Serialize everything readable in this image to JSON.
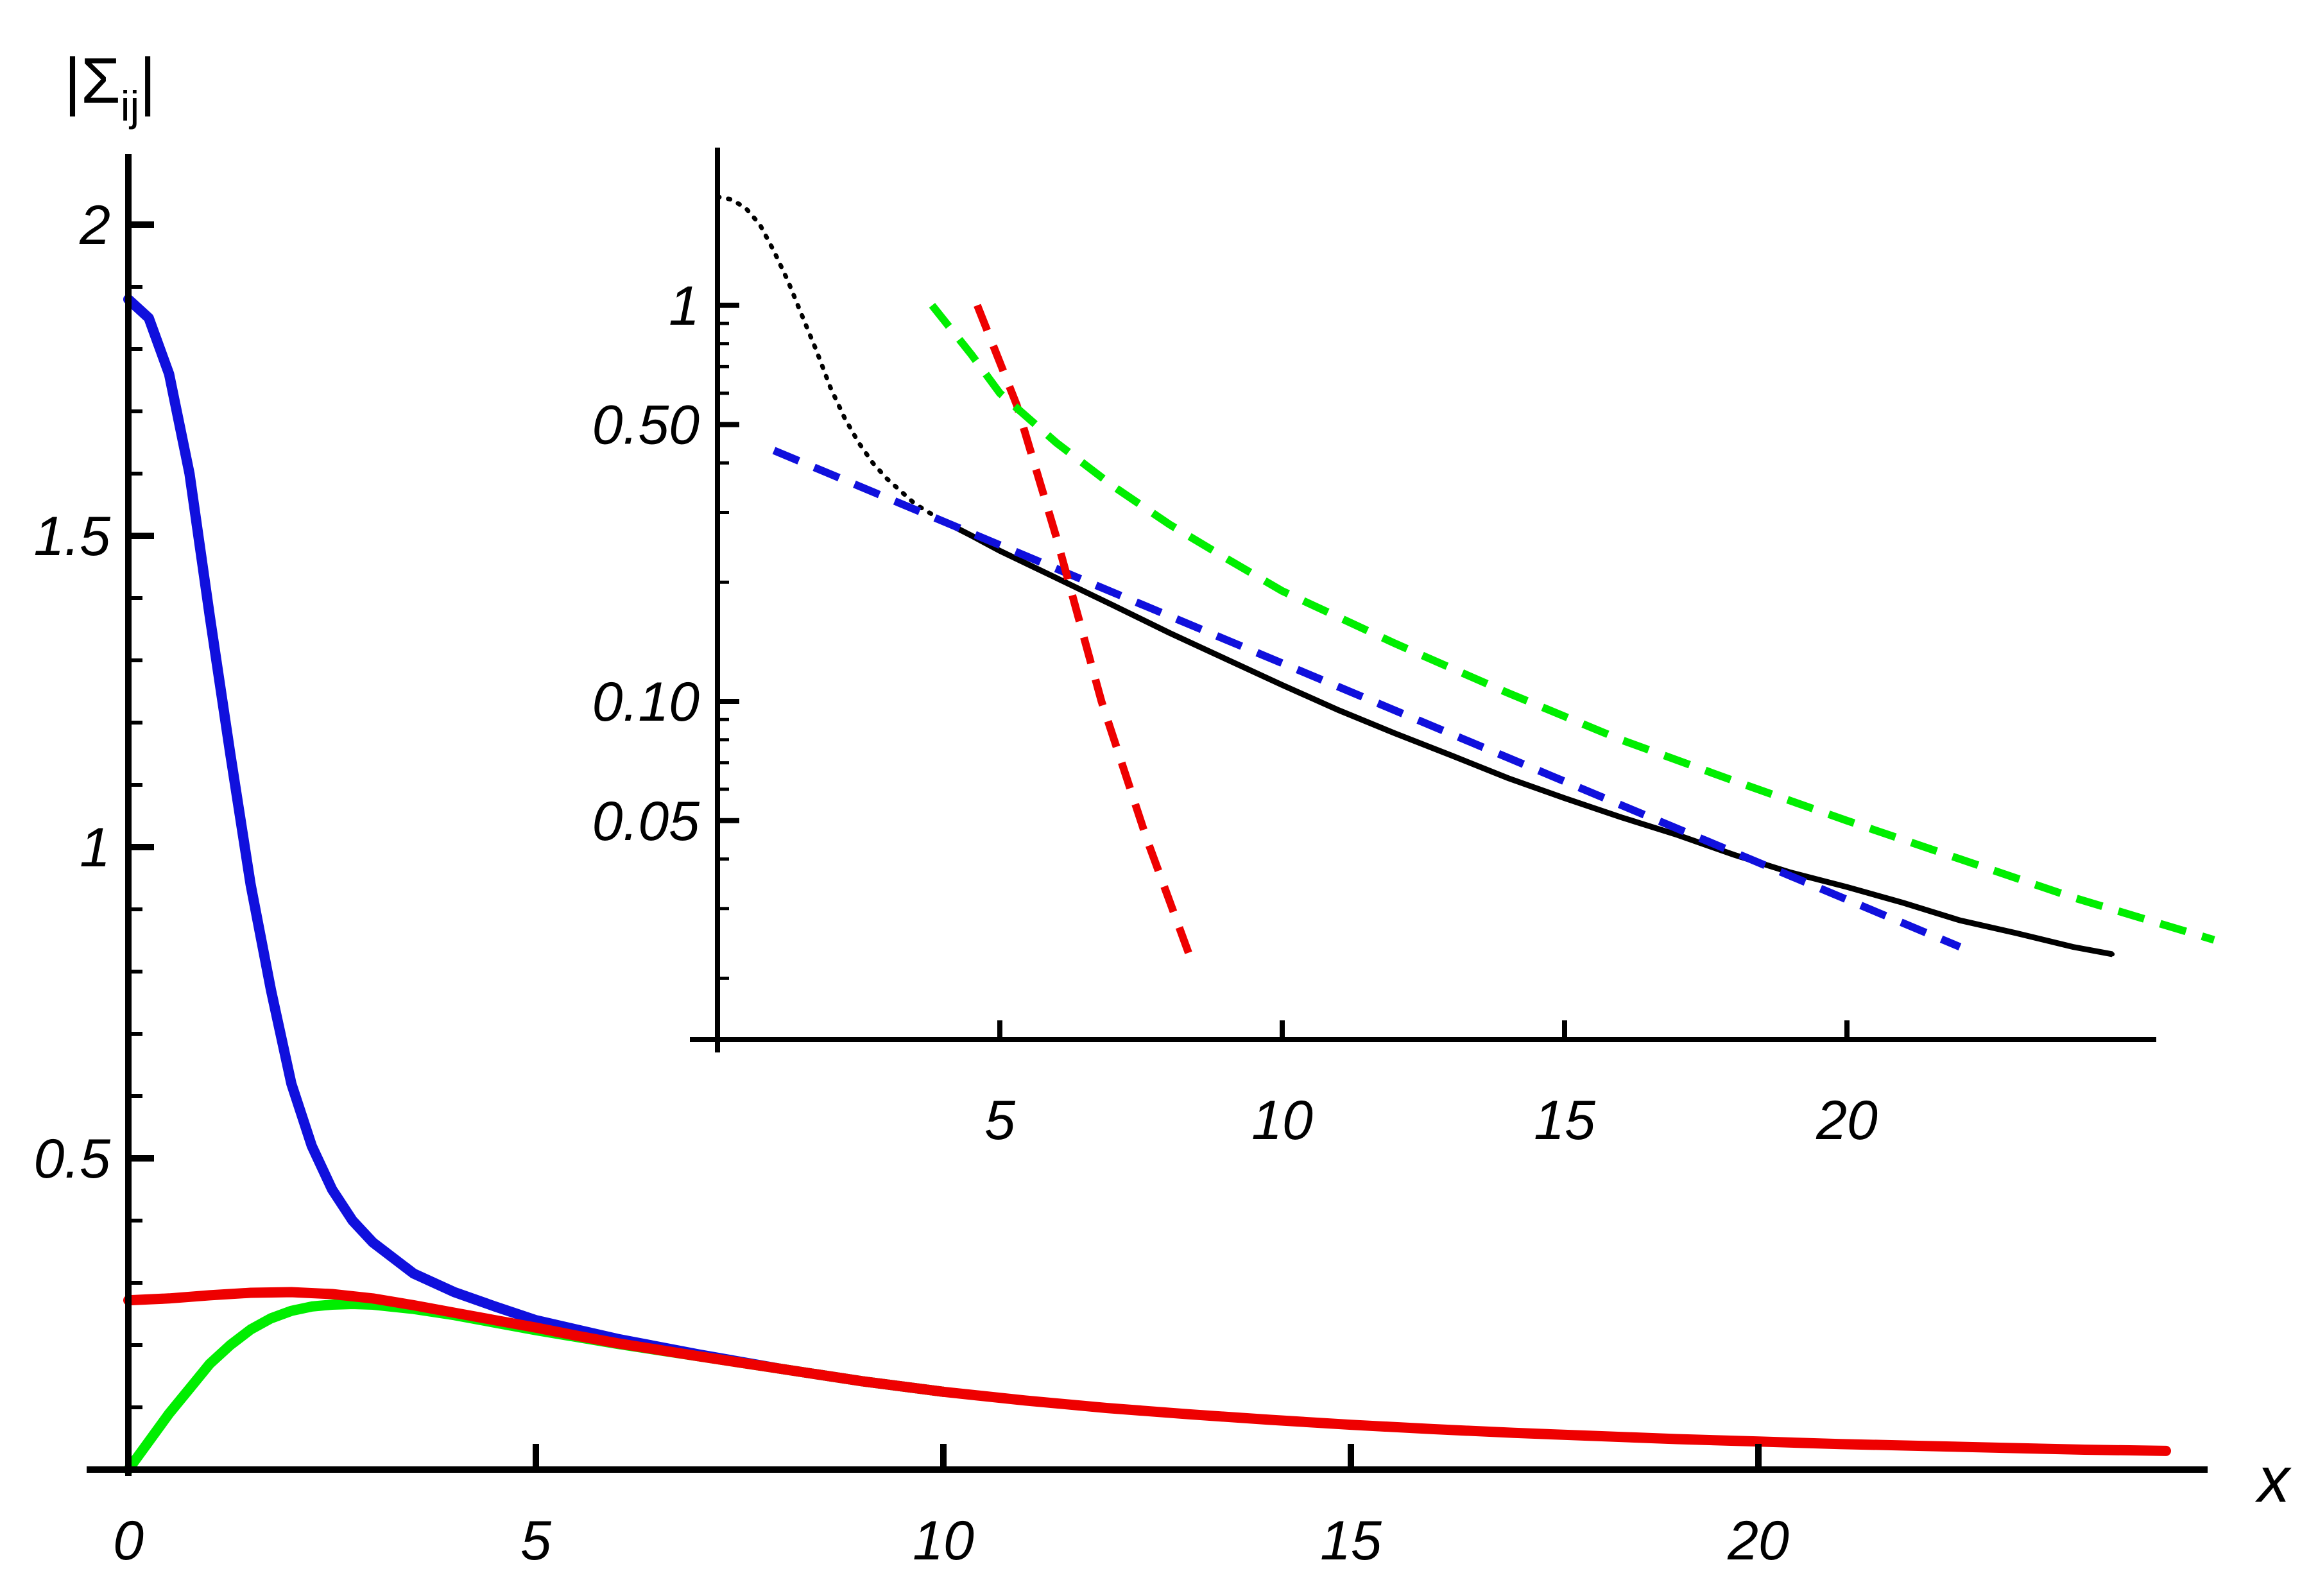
{
  "chart_data": [
    {
      "type": "line",
      "panel": "main",
      "ylabel": "|Σij|",
      "xlabel": "x",
      "xlim": [
        0,
        25
      ],
      "ylim": [
        0,
        2.05
      ],
      "x_ticks": [
        0,
        5,
        10,
        15,
        20
      ],
      "x_tick_labels": [
        "0",
        "5",
        "10",
        "15",
        "20"
      ],
      "y_ticks": [
        0.5,
        1,
        1.5,
        2
      ],
      "y_tick_labels": [
        "0.5",
        "1",
        "1.5",
        "2"
      ],
      "grid": false,
      "series": [
        {
          "color": "#1010dd",
          "style": "solid",
          "x": [
            0,
            0.25,
            0.5,
            0.75,
            1,
            1.25,
            1.5,
            1.75,
            2,
            2.25,
            2.5,
            2.75,
            3,
            3.5,
            4,
            4.5,
            5,
            5.5,
            6,
            7,
            8,
            9,
            10
          ],
          "y": [
            1.88,
            1.85,
            1.76,
            1.6,
            1.37,
            1.15,
            0.94,
            0.77,
            0.62,
            0.52,
            0.45,
            0.4,
            0.365,
            0.315,
            0.285,
            0.262,
            0.24,
            0.225,
            0.21,
            0.185,
            0.162,
            0.142,
            0.125
          ]
        },
        {
          "color": "#00ee00",
          "style": "solid",
          "x": [
            0,
            0.25,
            0.5,
            0.75,
            1,
            1.25,
            1.5,
            1.75,
            2,
            2.25,
            2.5,
            2.75,
            3,
            3.5,
            4,
            4.5,
            5,
            5.5,
            6,
            7,
            8,
            9,
            10
          ],
          "y": [
            0.0,
            0.045,
            0.09,
            0.13,
            0.17,
            0.2,
            0.225,
            0.243,
            0.255,
            0.262,
            0.265,
            0.266,
            0.265,
            0.258,
            0.248,
            0.236,
            0.224,
            0.213,
            0.202,
            0.182,
            0.162,
            0.142,
            0.125
          ]
        },
        {
          "color": "#ee0000",
          "style": "solid",
          "x": [
            0,
            0.5,
            1,
            1.5,
            2,
            2.5,
            3,
            3.5,
            4,
            4.5,
            5,
            5.5,
            6,
            7,
            8,
            9,
            10,
            11,
            12,
            13,
            14,
            15,
            16,
            17,
            18,
            19,
            20,
            21,
            22,
            23,
            24,
            25
          ],
          "y": [
            0.272,
            0.275,
            0.28,
            0.284,
            0.285,
            0.282,
            0.275,
            0.264,
            0.252,
            0.24,
            0.228,
            0.215,
            0.203,
            0.182,
            0.162,
            0.142,
            0.125,
            0.111,
            0.099,
            0.089,
            0.08,
            0.072,
            0.065,
            0.059,
            0.054,
            0.049,
            0.045,
            0.041,
            0.038,
            0.035,
            0.032,
            0.03
          ]
        }
      ]
    },
    {
      "type": "line",
      "panel": "inset",
      "yscale": "log",
      "xlim": [
        0,
        25
      ],
      "ylim": [
        0.014,
        2.0
      ],
      "x_ticks": [
        5,
        10,
        15,
        20
      ],
      "x_tick_labels": [
        "5",
        "10",
        "15",
        "20"
      ],
      "y_ticks": [
        0.05,
        0.1,
        0.5,
        1
      ],
      "y_tick_labels": [
        "0.05",
        "0.10",
        "0.50",
        "1"
      ],
      "grid": false,
      "series": [
        {
          "color": "#000000",
          "style": "dotted-then-solid",
          "x": [
            0,
            0.25,
            0.5,
            0.75,
            1,
            1.25,
            1.5,
            1.75,
            2,
            2.25,
            2.5,
            2.75,
            3,
            3.5,
            4,
            4.5,
            5,
            6,
            7,
            8,
            9,
            10,
            11,
            12,
            13,
            14,
            15,
            16,
            17,
            18,
            19,
            20,
            21,
            22,
            23,
            24,
            24.7
          ],
          "y": [
            1.88,
            1.85,
            1.76,
            1.6,
            1.37,
            1.15,
            0.94,
            0.77,
            0.62,
            0.52,
            0.45,
            0.4,
            0.365,
            0.315,
            0.285,
            0.262,
            0.24,
            0.205,
            0.175,
            0.149,
            0.128,
            0.11,
            0.095,
            0.083,
            0.073,
            0.064,
            0.057,
            0.051,
            0.046,
            0.041,
            0.037,
            0.034,
            0.031,
            0.028,
            0.026,
            0.024,
            0.023
          ]
        },
        {
          "color": "#1010dd",
          "style": "dashed",
          "x": [
            1,
            22
          ],
          "y": [
            0.43,
            0.024
          ]
        },
        {
          "color": "#ee0000",
          "style": "dashed",
          "x": [
            4.6,
            5.3,
            6,
            6.8,
            7.6,
            8.4
          ],
          "y": [
            1.0,
            0.56,
            0.26,
            0.1,
            0.045,
            0.022
          ]
        },
        {
          "color": "#00ee00",
          "style": "dashed",
          "x": [
            3.8,
            4.5,
            5,
            6,
            7,
            8,
            9,
            10,
            12,
            14,
            16,
            18,
            20,
            22,
            24,
            26.5
          ],
          "y": [
            1.0,
            0.75,
            0.6,
            0.45,
            0.35,
            0.28,
            0.23,
            0.19,
            0.14,
            0.105,
            0.08,
            0.063,
            0.05,
            0.04,
            0.032,
            0.025
          ]
        }
      ]
    }
  ]
}
